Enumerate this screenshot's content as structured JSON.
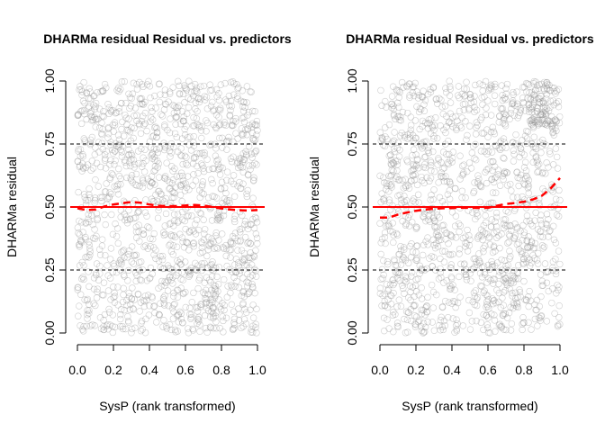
{
  "chart_data": [
    {
      "type": "scatter",
      "title": "DHARMa residual Residual vs. predictors",
      "xlabel": "SysP (rank transformed)",
      "ylabel": "DHARMa residual",
      "xlim": [
        0,
        1
      ],
      "ylim": [
        0,
        1
      ],
      "xticks": [
        "0.0",
        "0.2",
        "0.4",
        "0.6",
        "0.8",
        "1.0"
      ],
      "yticks": [
        "0.00",
        "0.25",
        "0.50",
        "0.75",
        "1.00"
      ],
      "reference_lines": [
        {
          "y": 0.25,
          "color": "#000000",
          "style": "dashed"
        },
        {
          "y": 0.5,
          "color": "#ff0000",
          "style": "solid"
        },
        {
          "y": 0.75,
          "color": "#000000",
          "style": "dashed"
        }
      ],
      "points_style": {
        "shape": "open-circle",
        "color": "#888888"
      },
      "point_count_approx": 1400,
      "smooth": {
        "color": "#ff0000",
        "style": "dashed",
        "x": [
          0.0,
          0.05,
          0.1,
          0.15,
          0.2,
          0.25,
          0.3,
          0.35,
          0.4,
          0.45,
          0.5,
          0.55,
          0.6,
          0.65,
          0.7,
          0.75,
          0.8,
          0.85,
          0.9,
          0.95,
          1.0
        ],
        "y": [
          0.495,
          0.488,
          0.49,
          0.502,
          0.51,
          0.515,
          0.52,
          0.517,
          0.51,
          0.505,
          0.503,
          0.504,
          0.506,
          0.508,
          0.506,
          0.5,
          0.494,
          0.49,
          0.487,
          0.486,
          0.488
        ]
      }
    },
    {
      "type": "scatter",
      "title": "DHARMa residual Residual vs. predictors",
      "xlabel": "SysP (rank transformed)",
      "ylabel": "DHARMa residual",
      "xlim": [
        0,
        1
      ],
      "ylim": [
        0,
        1
      ],
      "xticks": [
        "0.0",
        "0.2",
        "0.4",
        "0.6",
        "0.8",
        "1.0"
      ],
      "yticks": [
        "0.00",
        "0.25",
        "0.50",
        "0.75",
        "1.00"
      ],
      "reference_lines": [
        {
          "y": 0.25,
          "color": "#000000",
          "style": "dashed"
        },
        {
          "y": 0.5,
          "color": "#ff0000",
          "style": "solid"
        },
        {
          "y": 0.75,
          "color": "#000000",
          "style": "dashed"
        }
      ],
      "points_style": {
        "shape": "open-circle",
        "color": "#888888"
      },
      "point_count_approx": 1400,
      "smooth": {
        "color": "#ff0000",
        "style": "dashed",
        "x": [
          0.0,
          0.05,
          0.1,
          0.15,
          0.2,
          0.25,
          0.3,
          0.35,
          0.4,
          0.45,
          0.5,
          0.55,
          0.6,
          0.65,
          0.7,
          0.75,
          0.8,
          0.85,
          0.9,
          0.95,
          1.0
        ],
        "y": [
          0.458,
          0.458,
          0.47,
          0.478,
          0.485,
          0.49,
          0.493,
          0.495,
          0.496,
          0.497,
          0.497,
          0.496,
          0.497,
          0.505,
          0.512,
          0.516,
          0.521,
          0.53,
          0.545,
          0.575,
          0.615
        ]
      }
    }
  ]
}
